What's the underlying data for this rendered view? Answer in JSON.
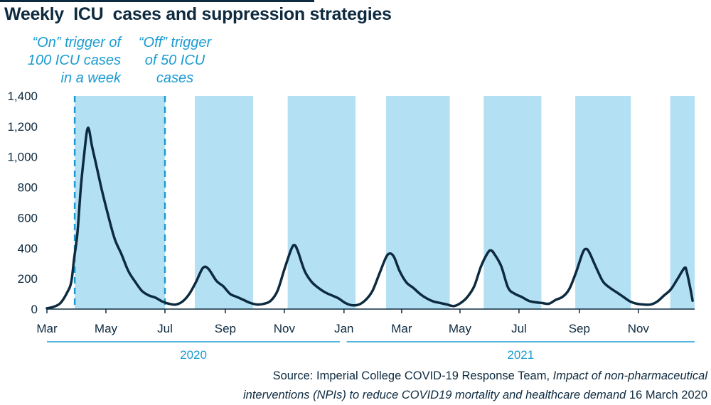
{
  "title": "Weekly  ICU  cases and suppression strategies",
  "annotations": {
    "on_trigger": "“On” trigger of 100 ICU cases in a week",
    "off_trigger": "“Off” trigger of 50 ICU cases"
  },
  "source": {
    "prefix": "Source: Imperial College COVID-19 Response Team, ",
    "title": "Impact of non-pharmaceutical interventions (NPIs) to reduce COVID19 mortality and healthcare demand",
    "suffix": " 16 March 2020"
  },
  "colors": {
    "line": "#0d2a3f",
    "shade": "#b3e0f2",
    "accent": "#1b9bd1",
    "text": "#0d2a3f"
  },
  "chart_data": {
    "type": "line",
    "title": "Weekly  ICU  cases and suppression strategies",
    "x_unit": "weeks since start of March 2020",
    "ylim": [
      0,
      1400
    ],
    "y_ticks": [
      0,
      200,
      400,
      600,
      800,
      1000,
      1200,
      1400
    ],
    "y_tick_labels": [
      "0",
      "200",
      "400",
      "600",
      "800",
      "1,000",
      "1,200",
      "1,400"
    ],
    "x_ticks": [
      {
        "label": "Mar",
        "x": 0
      },
      {
        "label": "May",
        "x": 8.7
      },
      {
        "label": "Jul",
        "x": 17.4
      },
      {
        "label": "Sep",
        "x": 26.3
      },
      {
        "label": "Nov",
        "x": 35
      },
      {
        "label": "Jan",
        "x": 43.8
      },
      {
        "label": "Mar",
        "x": 52.3
      },
      {
        "label": "May",
        "x": 60.9
      },
      {
        "label": "Jul",
        "x": 69.6
      },
      {
        "label": "Sep",
        "x": 78.5
      },
      {
        "label": "Nov",
        "x": 87.2
      }
    ],
    "year_bands": [
      {
        "label": "2020",
        "start": 0,
        "end": 43.2
      },
      {
        "label": "2021",
        "start": 44.2,
        "end": 95.5
      }
    ],
    "xlim": [
      0,
      95.5
    ],
    "shaded_periods": [
      [
        4.1,
        17.4
      ],
      [
        21.8,
        30.4
      ],
      [
        35.5,
        45.5
      ],
      [
        50,
        59.4
      ],
      [
        64.4,
        72.9
      ],
      [
        77.9,
        86.1
      ],
      [
        91.9,
        95.5
      ]
    ],
    "trigger_lines": [
      {
        "x": 4.1,
        "label": "on"
      },
      {
        "x": 17.4,
        "label": "off"
      }
    ],
    "series": [
      {
        "values": [
          [
            0,
            5
          ],
          [
            1,
            15
          ],
          [
            2,
            40
          ],
          [
            3,
            110
          ],
          [
            3.6,
            180
          ],
          [
            4,
            330
          ],
          [
            4.5,
            500
          ],
          [
            5,
            800
          ],
          [
            5.5,
            1020
          ],
          [
            5.9,
            1170
          ],
          [
            6.2,
            1180
          ],
          [
            6.6,
            1080
          ],
          [
            7.2,
            960
          ],
          [
            8,
            800
          ],
          [
            9,
            620
          ],
          [
            10,
            460
          ],
          [
            11,
            360
          ],
          [
            12,
            250
          ],
          [
            13,
            180
          ],
          [
            14,
            120
          ],
          [
            15,
            90
          ],
          [
            16,
            75
          ],
          [
            17,
            50
          ],
          [
            18,
            35
          ],
          [
            19,
            30
          ],
          [
            20,
            50
          ],
          [
            21,
            100
          ],
          [
            22,
            180
          ],
          [
            23,
            270
          ],
          [
            23.8,
            265
          ],
          [
            25,
            185
          ],
          [
            26,
            150
          ],
          [
            27,
            100
          ],
          [
            28,
            80
          ],
          [
            29,
            60
          ],
          [
            30,
            40
          ],
          [
            31,
            30
          ],
          [
            32,
            35
          ],
          [
            33,
            55
          ],
          [
            34,
            120
          ],
          [
            35,
            260
          ],
          [
            36,
            390
          ],
          [
            36.5,
            420
          ],
          [
            37,
            380
          ],
          [
            38,
            250
          ],
          [
            39,
            180
          ],
          [
            40,
            140
          ],
          [
            41,
            110
          ],
          [
            42,
            90
          ],
          [
            43,
            70
          ],
          [
            44,
            40
          ],
          [
            45,
            25
          ],
          [
            46,
            30
          ],
          [
            47,
            60
          ],
          [
            48,
            120
          ],
          [
            49,
            230
          ],
          [
            50,
            340
          ],
          [
            50.6,
            365
          ],
          [
            51.2,
            340
          ],
          [
            52,
            250
          ],
          [
            53,
            175
          ],
          [
            54,
            140
          ],
          [
            55,
            100
          ],
          [
            56,
            70
          ],
          [
            57,
            50
          ],
          [
            58,
            40
          ],
          [
            59,
            30
          ],
          [
            60,
            20
          ],
          [
            61,
            40
          ],
          [
            62,
            80
          ],
          [
            63,
            150
          ],
          [
            64,
            280
          ],
          [
            65,
            370
          ],
          [
            65.5,
            385
          ],
          [
            66,
            360
          ],
          [
            67,
            280
          ],
          [
            68,
            140
          ],
          [
            69,
            100
          ],
          [
            70,
            80
          ],
          [
            71,
            55
          ],
          [
            72,
            45
          ],
          [
            73,
            40
          ],
          [
            74,
            35
          ],
          [
            75,
            60
          ],
          [
            76,
            80
          ],
          [
            77,
            130
          ],
          [
            78,
            240
          ],
          [
            79,
            370
          ],
          [
            79.5,
            395
          ],
          [
            80,
            370
          ],
          [
            81,
            270
          ],
          [
            82,
            180
          ],
          [
            83,
            140
          ],
          [
            84,
            110
          ],
          [
            85,
            80
          ],
          [
            86,
            50
          ],
          [
            87,
            35
          ],
          [
            88,
            30
          ],
          [
            89,
            30
          ],
          [
            90,
            50
          ],
          [
            91,
            90
          ],
          [
            92,
            130
          ],
          [
            93,
            200
          ],
          [
            94,
            270
          ],
          [
            94.3,
            250
          ],
          [
            94.8,
            150
          ],
          [
            95.2,
            55
          ]
        ]
      }
    ]
  }
}
